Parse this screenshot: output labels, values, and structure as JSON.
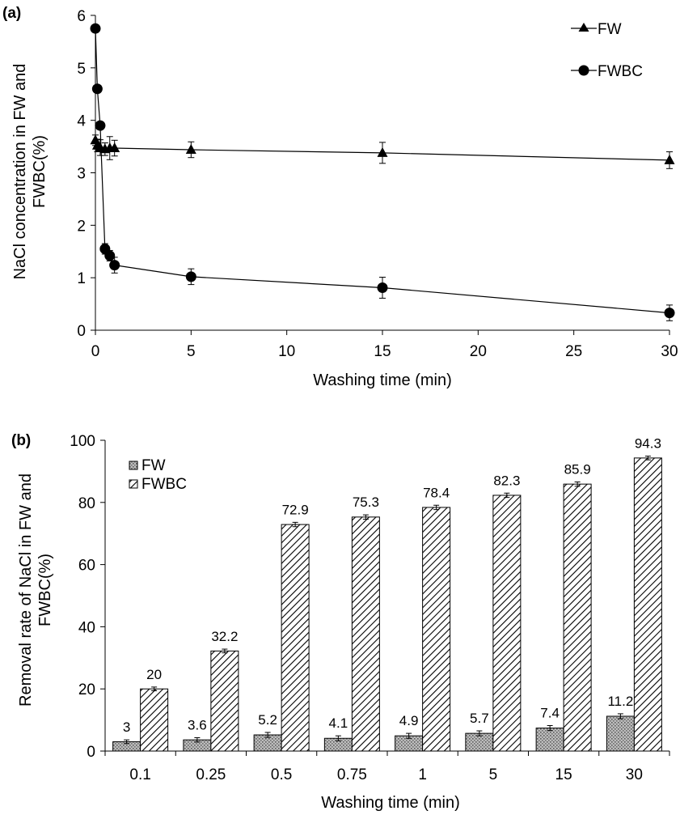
{
  "chart_data": [
    {
      "panel_label": "(a)",
      "type": "line",
      "xlabel": "Washing time (min)",
      "ylabel_lines": [
        "NaCl concentration  in FW and",
        "FWBC(%)"
      ],
      "xlim": [
        0,
        30
      ],
      "ylim": [
        0,
        6
      ],
      "x_ticks": [
        0,
        5,
        10,
        15,
        20,
        25,
        30
      ],
      "y_ticks": [
        0,
        1,
        2,
        3,
        4,
        5,
        6
      ],
      "grid": false,
      "legend_position": "top-right",
      "series": [
        {
          "name": "FW",
          "marker": "triangle",
          "x": [
            0,
            0.1,
            0.25,
            0.5,
            0.75,
            1,
            5,
            15,
            30
          ],
          "y": [
            3.62,
            3.52,
            3.48,
            3.45,
            3.47,
            3.47,
            3.44,
            3.38,
            3.24
          ],
          "err": [
            0.1,
            0.12,
            0.15,
            0.12,
            0.22,
            0.15,
            0.15,
            0.2,
            0.16
          ]
        },
        {
          "name": "FWBC",
          "marker": "circle",
          "x": [
            0,
            0.1,
            0.25,
            0.5,
            0.75,
            1,
            5,
            15,
            30
          ],
          "y": [
            5.75,
            4.6,
            3.9,
            1.55,
            1.42,
            1.24,
            1.02,
            0.81,
            0.33
          ],
          "err": [
            0,
            0,
            0,
            0.1,
            0.1,
            0.15,
            0.15,
            0.2,
            0.15
          ]
        }
      ]
    },
    {
      "panel_label": "(b)",
      "type": "bar",
      "xlabel": "Washing time (min)",
      "ylabel_lines": [
        "Removal rate of NaCl in FW and",
        "FWBC(%)"
      ],
      "categories": [
        "0.1",
        "0.25",
        "0.5",
        "0.75",
        "1",
        "5",
        "15",
        "30"
      ],
      "ylim": [
        0,
        100
      ],
      "y_ticks": [
        0,
        20,
        40,
        60,
        80,
        100
      ],
      "grid": false,
      "legend_position": "top-left",
      "series": [
        {
          "name": "FW",
          "fill": "dotted",
          "values": [
            3,
            3.6,
            5.2,
            4.1,
            4.9,
            5.7,
            7.4,
            11.2
          ],
          "labels": [
            "3",
            "3.6",
            "5.2",
            "4.1",
            "4.9",
            "5.7",
            "7.4",
            "11.2"
          ],
          "err": [
            0.6,
            0.7,
            0.8,
            0.8,
            0.8,
            0.8,
            0.8,
            0.8
          ]
        },
        {
          "name": "FWBC",
          "fill": "hatched",
          "values": [
            20,
            32.2,
            72.9,
            75.3,
            78.4,
            82.3,
            85.9,
            94.3
          ],
          "labels": [
            "20",
            "32.2",
            "72.9",
            "75.3",
            "78.4",
            "82.3",
            "85.9",
            "94.3"
          ],
          "err": [
            0.6,
            0.6,
            0.7,
            0.7,
            0.7,
            0.7,
            0.7,
            0.6
          ]
        }
      ]
    }
  ]
}
